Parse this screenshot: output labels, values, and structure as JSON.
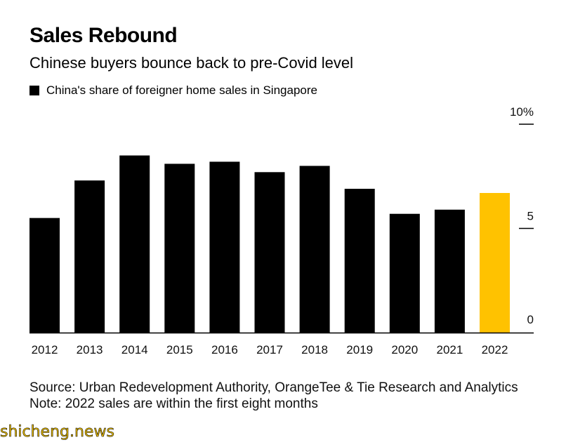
{
  "header": {
    "title": "Sales Rebound",
    "subtitle": "Chinese buyers bounce back to pre-Covid level"
  },
  "colors": {
    "bar": "#000000",
    "highlight": "#ffc200",
    "axis": "#000000"
  },
  "chart_data": {
    "type": "bar",
    "title": "Sales Rebound",
    "subtitle": "Chinese buyers bounce back to pre-Covid level",
    "categories": [
      "2012",
      "2013",
      "2014",
      "2015",
      "2016",
      "2017",
      "2018",
      "2019",
      "2020",
      "2021",
      "2022"
    ],
    "series": [
      {
        "name": "China's share of foreigner home sales in Singapore",
        "values": [
          5.5,
          7.3,
          8.5,
          8.1,
          8.2,
          7.7,
          8.0,
          6.9,
          5.7,
          5.9,
          6.7
        ]
      }
    ],
    "highlight_index": 10,
    "ylim": [
      0,
      10
    ],
    "yticks": [
      {
        "value": 10,
        "label": "10%"
      },
      {
        "value": 5,
        "label": "5"
      },
      {
        "value": 0,
        "label": "0"
      }
    ],
    "axis_side": "right",
    "legend_position": "top-left",
    "grid": false
  },
  "footer": {
    "source": "Source: Urban Redevelopment Authority, OrangeTee & Tie Research and Analytics",
    "note": "Note: 2022 sales are within the first eight months"
  },
  "watermark": "shicheng.news"
}
